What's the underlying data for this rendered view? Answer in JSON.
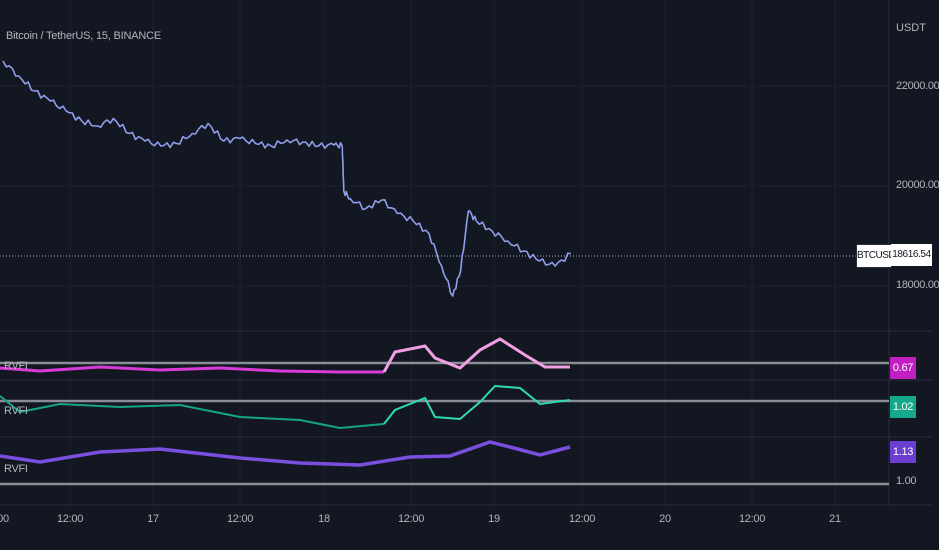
{
  "chart": {
    "title": "Bitcoin / TetherUS, 15, BINANCE",
    "currency": "USDT",
    "symbol_tag": "BTCUSDT",
    "last_price": "18616.54",
    "price_ticks": [
      "22000.00",
      "20000.00",
      "18000.00"
    ],
    "time_ticks": [
      "00",
      "12:00",
      "17",
      "12:00",
      "18",
      "12:00",
      "19",
      "12:00",
      "20",
      "12:00",
      "21"
    ]
  },
  "indicators": [
    {
      "label": "RVFI",
      "value": "0.67",
      "color": "#c21fc2",
      "line_color": "#d93bd9",
      "hi_color": "#f0a0e0"
    },
    {
      "label": "RVFI",
      "value": "1.02",
      "color": "#16a88a",
      "line_color": "#14a684",
      "hi_color": "#2fd9b4"
    },
    {
      "label": "RVFI",
      "value": "1.13",
      "color": "#6a3fd0",
      "line_color": "#7a4fe0",
      "hi_color": "#7a4fe0"
    }
  ],
  "baseline_label": "1.00",
  "colors": {
    "background": "#131722",
    "price_line": "#8f9eea",
    "grid": "#1e222d"
  },
  "chart_data": {
    "type": "line",
    "title": "Bitcoin / TetherUS, 15, BINANCE",
    "ylabel": "USDT",
    "ylim": [
      17200,
      23200
    ],
    "x": [
      16.0,
      16.1,
      16.2,
      16.3,
      16.4,
      16.5,
      16.6,
      16.7,
      16.8,
      16.9,
      17.0,
      17.1,
      17.2,
      17.3,
      17.4,
      17.5,
      17.6,
      17.7,
      17.8,
      17.9,
      18.0,
      18.1,
      18.15,
      18.16,
      18.2,
      18.3,
      18.4,
      18.5,
      18.6,
      18.7,
      18.78,
      18.85,
      18.9,
      18.95,
      19.0,
      19.1,
      19.2,
      19.3,
      19.4,
      19.5,
      19.6
    ],
    "series": [
      {
        "values": [
          22500,
          22200,
          21900,
          21700,
          21500,
          21300,
          21200,
          21350,
          21050,
          20900,
          20800,
          20850,
          21050,
          21250,
          20900,
          20950,
          20850,
          20800,
          20920,
          20880,
          20800,
          20820,
          20800,
          19900,
          19750,
          19550,
          19720,
          19450,
          19300,
          19050,
          18400,
          17800,
          18300,
          19500,
          19300,
          19100,
          18900,
          18700,
          18500,
          18400,
          18650
        ]
      }
    ]
  }
}
